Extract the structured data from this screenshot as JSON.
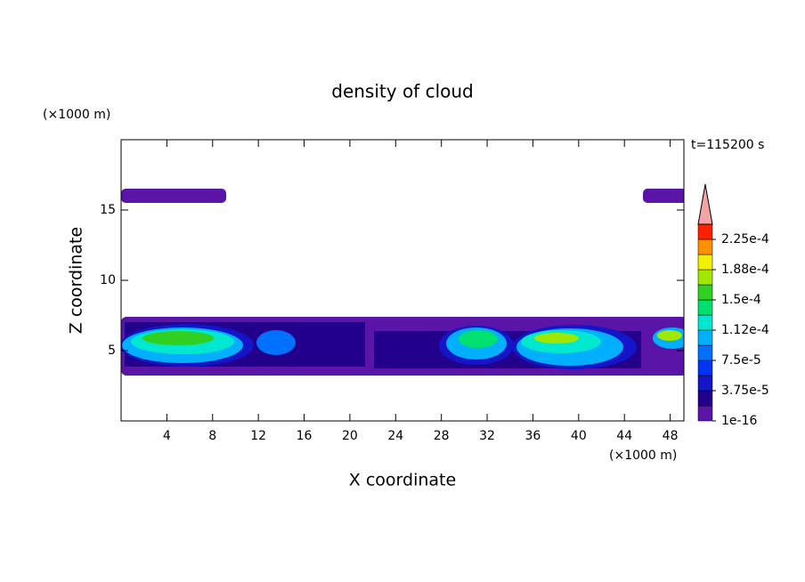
{
  "chart_data": {
    "type": "contour",
    "title": "density of cloud",
    "x_label": "X coordinate",
    "y_label": "Z coordinate",
    "x_unit": "(×1000 m)",
    "y_unit": "(×1000 m)",
    "time_label": "t=115200 s",
    "xlim": [
      0,
      49.2
    ],
    "ylim": [
      0,
      20
    ],
    "xticks": [
      4,
      8,
      12,
      16,
      20,
      24,
      28,
      32,
      36,
      40,
      44,
      48
    ],
    "yticks": [
      5,
      10,
      15
    ],
    "clim": [
      1e-16,
      0.00024375
    ],
    "colorbar_ticks": [
      {
        "value": 1e-16,
        "label": "1e-16"
      },
      {
        "value": 3.75e-05,
        "label": "3.75e-5"
      },
      {
        "value": 7.5e-05,
        "label": "7.5e-5"
      },
      {
        "value": 0.0001125,
        "label": "1.12e-4"
      },
      {
        "value": 0.00015,
        "label": "1.5e-4"
      },
      {
        "value": 0.0001875,
        "label": "1.88e-4"
      },
      {
        "value": 0.000225,
        "label": "2.25e-4"
      }
    ],
    "colors": [
      "#5a14a8",
      "#22008c",
      "#1414c8",
      "#0034f0",
      "#0070ff",
      "#00b0ff",
      "#00e8d0",
      "#00e070",
      "#30d020",
      "#a0e800",
      "#f0f000",
      "#ff9000",
      "#ff2000"
    ],
    "extend_color": "#f4a4a4"
  }
}
